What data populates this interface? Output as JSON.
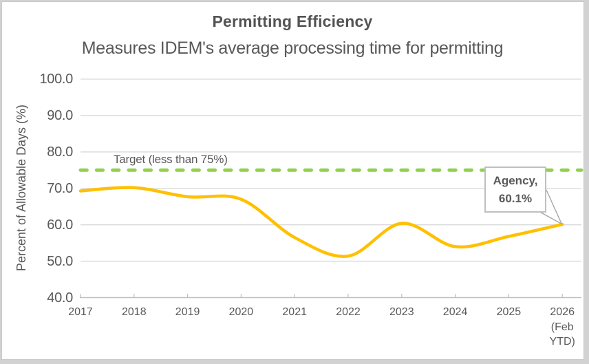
{
  "chart": {
    "title": "Permitting Efficiency",
    "subtitle": "Measures IDEM's average processing time for permitting"
  },
  "chart_data": {
    "type": "line",
    "title": "Permitting Efficiency",
    "subtitle": "Measures IDEM's average processing time for permitting",
    "xlabel": "",
    "ylabel": "Percent of Allowable Days (%)",
    "ylim": [
      40,
      100
    ],
    "grid": true,
    "yticks": [
      100.0,
      90.0,
      80.0,
      70.0,
      60.0,
      50.0,
      40.0
    ],
    "ytick_labels": [
      "100.0",
      "90.0",
      "80.0",
      "70.0",
      "60.0",
      "50.0",
      "40.0"
    ],
    "categories": [
      "2017",
      "2018",
      "2019",
      "2020",
      "2021",
      "2022",
      "2023",
      "2024",
      "2025",
      "2026 (Feb YTD)"
    ],
    "x_tick_lines": [
      [
        "2017"
      ],
      [
        "2018"
      ],
      [
        "2019"
      ],
      [
        "2020"
      ],
      [
        "2021"
      ],
      [
        "2022"
      ],
      [
        "2023"
      ],
      [
        "2024"
      ],
      [
        "2025"
      ],
      [
        "2026",
        "(Feb",
        "YTD)"
      ]
    ],
    "series": [
      {
        "name": "Agency",
        "type": "smooth-line",
        "color": "#FFC000",
        "values": [
          69.3,
          70.2,
          67.7,
          67.0,
          56.5,
          51.4,
          60.4,
          54.0,
          56.8,
          60.1
        ]
      },
      {
        "name": "Target",
        "type": "dashed-constant-line",
        "color": "#92D050",
        "value": 75,
        "label": "Target (less than 75%)"
      }
    ],
    "legend": "none",
    "annotations": {
      "target_label": "Target (less than 75%)",
      "callout": {
        "line1": "Agency,",
        "line2": "60.1%"
      }
    }
  },
  "colors": {
    "series_line": "#FFC000",
    "target_line": "#92D050",
    "gridline": "#d9d9d9",
    "axis_line": "#bfbfbf",
    "text": "#595959",
    "callout_border": "#bfbfbf",
    "leader_line": "#a6a6a6",
    "page_background": "#d2d2d2",
    "card_background": "#ffffff"
  }
}
